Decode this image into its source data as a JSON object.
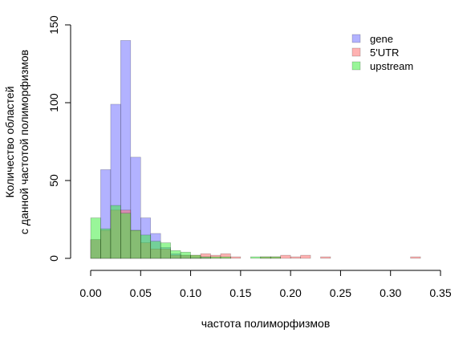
{
  "chart_data": {
    "type": "bar",
    "subtype": "overlaid-histogram",
    "title": "",
    "xlabel": "частота полиморфизмов",
    "ylabel_lines": [
      "Количество областей",
      "с данной частотой полиморфизмов"
    ],
    "xlim": [
      0,
      0.35
    ],
    "ylim": [
      0,
      150
    ],
    "xticks": [
      0.0,
      0.05,
      0.1,
      0.15,
      0.2,
      0.25,
      0.3,
      0.35
    ],
    "xtick_labels": [
      "0.00",
      "0.05",
      "0.10",
      "0.15",
      "0.20",
      "0.25",
      "0.30",
      "0.35"
    ],
    "yticks": [
      0,
      50,
      100,
      150
    ],
    "ytick_labels": [
      "0",
      "50",
      "100",
      "150"
    ],
    "bin_width": 0.01,
    "bin_starts": [
      0.0,
      0.01,
      0.02,
      0.03,
      0.04,
      0.05,
      0.06,
      0.07,
      0.08,
      0.09,
      0.1,
      0.11,
      0.12,
      0.13,
      0.14,
      0.15,
      0.16,
      0.17,
      0.18,
      0.19,
      0.2,
      0.21,
      0.22,
      0.23,
      0.24,
      0.25,
      0.26,
      0.27,
      0.28,
      0.29,
      0.3,
      0.31,
      0.32
    ],
    "series": [
      {
        "name": "gene",
        "color": "#6666ff",
        "values": [
          12,
          57,
          99,
          140,
          65,
          26,
          16,
          7,
          3,
          2,
          1,
          1,
          0,
          0,
          0,
          0,
          0,
          0,
          0,
          0,
          0,
          0,
          0,
          0,
          0,
          0,
          0,
          0,
          0,
          0,
          0,
          0,
          0
        ]
      },
      {
        "name": "5'UTR",
        "color": "#ff6666",
        "values": [
          12,
          18,
          31,
          31,
          18,
          10,
          6,
          6,
          2,
          2,
          2,
          3,
          2,
          3,
          1,
          0,
          0,
          1,
          1,
          2,
          1,
          2,
          0,
          1,
          0,
          0,
          0,
          0,
          0,
          0,
          0,
          0,
          1
        ]
      },
      {
        "name": "upstream",
        "color": "#33ee33",
        "values": [
          26,
          19,
          34,
          29,
          18,
          15,
          11,
          10,
          5,
          4,
          2,
          1,
          1,
          1,
          0,
          0,
          1,
          1,
          1,
          0,
          0,
          0,
          0,
          0,
          0,
          0,
          0,
          0,
          0,
          0,
          0,
          0,
          0
        ]
      }
    ],
    "legend_position": "top-right",
    "grid": false
  }
}
